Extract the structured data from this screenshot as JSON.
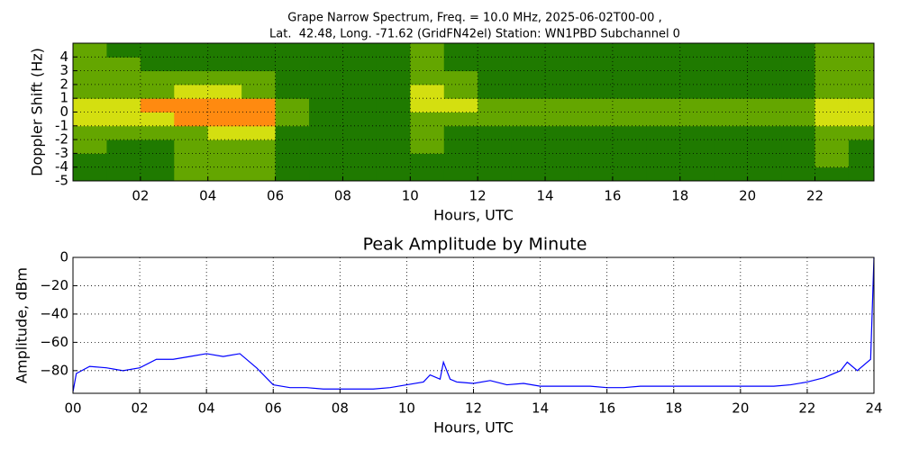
{
  "chart_data": [
    {
      "type": "heatmap",
      "title": [
        "Grape Narrow Spectrum, Freq. = 10.0 MHz, 2025-06-02T00-00 ,",
        "Lat.  42.48, Long. -71.62 (GridFN42el) Station: WN1PBD Subchannel 0"
      ],
      "x_label": "Hours, UTC",
      "y_label": "Doppler Shift (Hz)",
      "xlim": [
        0,
        23.75
      ],
      "ylim": [
        -5,
        5
      ],
      "xticks": [
        {
          "value": 2,
          "label": "02"
        },
        {
          "value": 4,
          "label": "04"
        },
        {
          "value": 6,
          "label": "06"
        },
        {
          "value": 8,
          "label": "08"
        },
        {
          "value": 10,
          "label": "10"
        },
        {
          "value": 12,
          "label": "12"
        },
        {
          "value": 14,
          "label": "14"
        },
        {
          "value": 16,
          "label": "16"
        },
        {
          "value": 18,
          "label": "18"
        },
        {
          "value": 20,
          "label": "20"
        },
        {
          "value": 22,
          "label": "22"
        }
      ],
      "yticks": [
        -5,
        -4,
        -3,
        -2,
        -1,
        0,
        1,
        2,
        3,
        4
      ],
      "grid": true,
      "xbins": [
        0,
        1,
        2,
        3,
        4,
        5,
        6,
        7,
        8,
        9,
        10,
        11,
        12,
        13,
        14,
        15,
        16,
        17,
        18,
        19,
        20,
        21,
        22,
        23,
        23.75
      ],
      "ybins": [
        -5,
        -4,
        -3,
        -2,
        -1,
        0,
        1,
        2,
        3,
        4,
        5
      ],
      "colors": [
        "#1f7a00",
        "#64a600",
        "#d4df10",
        "#ff8a10"
      ],
      "values": [
        [
          0,
          0,
          0,
          1,
          1,
          1,
          0,
          0,
          0,
          0,
          0,
          0,
          0,
          0,
          0,
          0,
          0,
          0,
          0,
          0,
          0,
          0,
          0,
          0
        ],
        [
          0,
          0,
          0,
          1,
          1,
          1,
          0,
          0,
          0,
          0,
          0,
          0,
          0,
          0,
          0,
          0,
          0,
          0,
          0,
          0,
          0,
          0,
          1,
          0
        ],
        [
          1,
          0,
          0,
          1,
          1,
          1,
          0,
          0,
          0,
          0,
          1,
          0,
          0,
          0,
          0,
          0,
          0,
          0,
          0,
          0,
          0,
          0,
          1,
          0
        ],
        [
          1,
          1,
          1,
          1,
          2,
          2,
          0,
          0,
          0,
          0,
          1,
          0,
          0,
          0,
          0,
          0,
          0,
          0,
          0,
          0,
          0,
          0,
          1,
          1
        ],
        [
          2,
          2,
          2,
          3,
          3,
          3,
          1,
          0,
          0,
          0,
          1,
          1,
          1,
          1,
          1,
          1,
          1,
          1,
          1,
          1,
          1,
          1,
          2,
          2
        ],
        [
          2,
          2,
          3,
          3,
          3,
          3,
          1,
          0,
          0,
          0,
          2,
          2,
          1,
          1,
          1,
          1,
          1,
          1,
          1,
          1,
          1,
          1,
          2,
          2
        ],
        [
          1,
          1,
          1,
          2,
          2,
          1,
          0,
          0,
          0,
          0,
          2,
          1,
          0,
          0,
          0,
          0,
          0,
          0,
          0,
          0,
          0,
          0,
          1,
          1
        ],
        [
          1,
          1,
          1,
          1,
          1,
          1,
          0,
          0,
          0,
          0,
          1,
          1,
          0,
          0,
          0,
          0,
          0,
          0,
          0,
          0,
          0,
          0,
          1,
          1
        ],
        [
          1,
          1,
          0,
          0,
          0,
          0,
          0,
          0,
          0,
          0,
          1,
          0,
          0,
          0,
          0,
          0,
          0,
          0,
          0,
          0,
          0,
          0,
          1,
          1
        ],
        [
          1,
          0,
          0,
          0,
          0,
          0,
          0,
          0,
          0,
          0,
          1,
          0,
          0,
          0,
          0,
          0,
          0,
          0,
          0,
          0,
          0,
          0,
          1,
          1
        ]
      ]
    },
    {
      "type": "line",
      "title": "Peak Amplitude by Minute",
      "x_label": "Hours, UTC",
      "y_label": "Amplitude, dBm",
      "xlim": [
        0,
        24
      ],
      "ylim": [
        -96,
        0
      ],
      "xticks": [
        {
          "value": 0,
          "label": "00"
        },
        {
          "value": 2,
          "label": "02"
        },
        {
          "value": 4,
          "label": "04"
        },
        {
          "value": 6,
          "label": "06"
        },
        {
          "value": 8,
          "label": "08"
        },
        {
          "value": 10,
          "label": "10"
        },
        {
          "value": 12,
          "label": "12"
        },
        {
          "value": 14,
          "label": "14"
        },
        {
          "value": 16,
          "label": "16"
        },
        {
          "value": 18,
          "label": "18"
        },
        {
          "value": 20,
          "label": "20"
        },
        {
          "value": 22,
          "label": "22"
        },
        {
          "value": 24,
          "label": "24"
        }
      ],
      "yticks": [
        {
          "value": -80,
          "label": "−80"
        },
        {
          "value": -60,
          "label": "−60"
        },
        {
          "value": -40,
          "label": "−40"
        },
        {
          "value": -20,
          "label": "−20"
        },
        0
      ],
      "grid": true,
      "color": "#0000ff",
      "x": [
        0,
        0.1,
        0.5,
        1,
        1.5,
        2,
        2.5,
        3,
        3.5,
        4,
        4.5,
        5,
        5.5,
        6,
        6.5,
        7,
        7.5,
        8,
        8.5,
        9,
        9.5,
        10,
        10.5,
        10.7,
        11,
        11.1,
        11.3,
        11.5,
        12,
        12.5,
        13,
        13.5,
        14,
        14.5,
        15,
        15.5,
        16,
        16.5,
        17,
        17.5,
        18,
        18.5,
        19,
        19.5,
        20,
        20.5,
        21,
        21.5,
        22,
        22.5,
        23,
        23.2,
        23.5,
        23.9,
        24
      ],
      "values": [
        -95,
        -82,
        -77,
        -78,
        -80,
        -78,
        -72,
        -72,
        -70,
        -68,
        -70,
        -68,
        -78,
        -90,
        -92,
        -92,
        -93,
        -93,
        -93,
        -93,
        -92,
        -90,
        -88,
        -83,
        -86,
        -74,
        -86,
        -88,
        -89,
        -87,
        -90,
        -89,
        -91,
        -91,
        -91,
        -91,
        -92,
        -92,
        -91,
        -91,
        -91,
        -91,
        -91,
        -91,
        -91,
        -91,
        -91,
        -90,
        -88,
        -85,
        -80,
        -74,
        -80,
        -72,
        0
      ]
    }
  ]
}
